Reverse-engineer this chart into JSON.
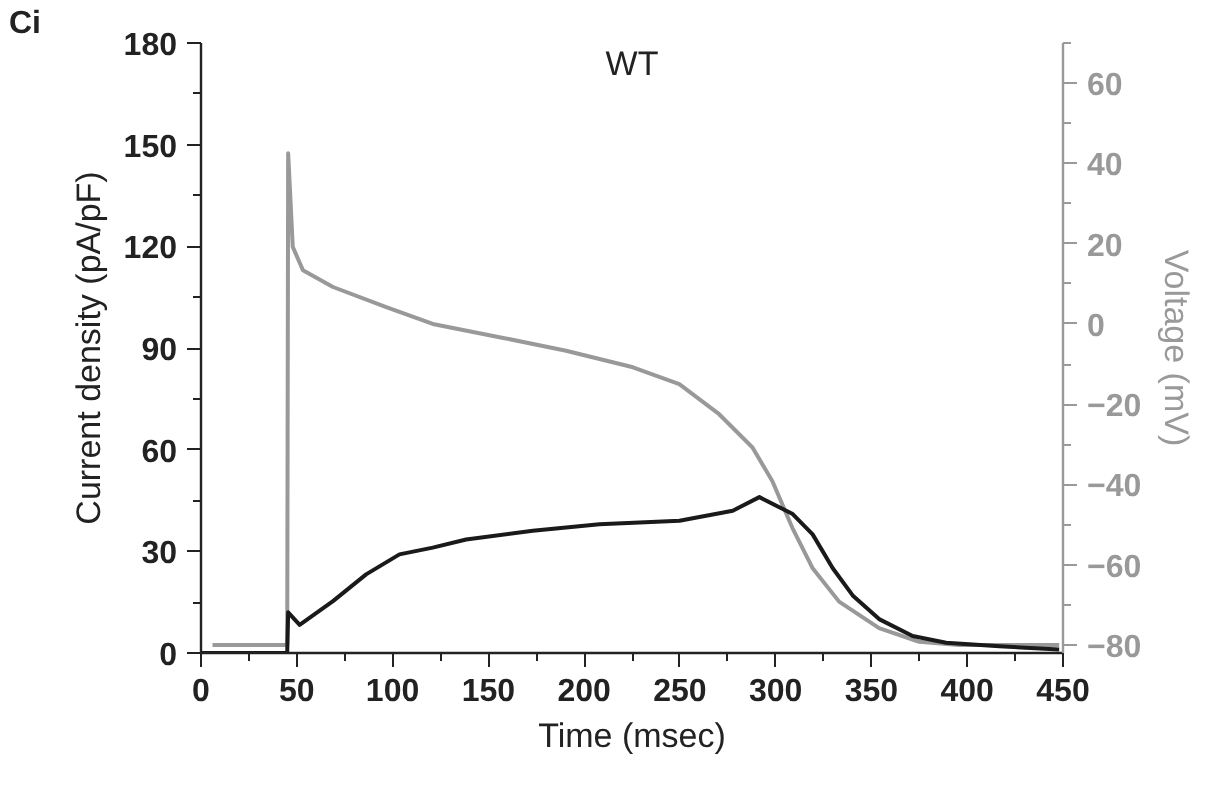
{
  "chart_data": {
    "type": "line",
    "title": "WT",
    "xlabel": "Time (msec)",
    "ylabel": "Current density (pA/pF)",
    "y2label": "Voltage (mV)",
    "annotations": [
      "Ci"
    ],
    "xlim": [
      0,
      450
    ],
    "xticks": [
      0,
      {
        "value": 25,
        "label": null
      },
      50,
      {
        "value": 75,
        "label": null
      },
      100,
      {
        "value": 125,
        "label": null
      },
      150,
      {
        "value": 175,
        "label": null
      },
      200,
      {
        "value": 225,
        "label": null
      },
      250,
      {
        "value": 275,
        "label": null
      },
      300,
      {
        "value": 325,
        "label": null
      },
      350,
      {
        "value": 375,
        "label": null
      },
      400,
      {
        "value": 425,
        "label": null
      },
      450
    ],
    "ylim": [
      0,
      180
    ],
    "yticks": [
      0,
      {
        "value": 15,
        "label": null
      },
      30,
      {
        "value": 45,
        "label": null
      },
      60,
      {
        "value": 75,
        "label": null
      },
      90,
      {
        "value": 105,
        "label": null
      },
      120,
      {
        "value": 135,
        "label": null
      },
      150,
      {
        "value": 165,
        "label": null
      },
      180
    ],
    "y2lim": [
      -82,
      70
    ],
    "y2ticks": [
      -80,
      {
        "value": -70,
        "label": null
      },
      -60,
      {
        "value": -50,
        "label": null
      },
      -40,
      {
        "value": -30,
        "label": null
      },
      -20,
      {
        "value": -10,
        "label": null
      },
      0,
      {
        "value": 10,
        "label": null
      },
      20,
      {
        "value": 30,
        "label": null
      },
      40,
      {
        "value": 50,
        "label": null
      },
      60,
      {
        "value": 70,
        "label": null
      }
    ],
    "grid": false,
    "series": [
      {
        "color": "#999999",
        "axis": "y2",
        "x": [
          6,
          45,
          45.5,
          47.9,
          53.2,
          68.9,
          96.7,
          121,
          155.8,
          190.6,
          225.5,
          249.7,
          270.5,
          287.9,
          298.3,
          308.7,
          319.2,
          333.1,
          354,
          374.9,
          395.8,
          448
        ],
        "values": [
          -80,
          -80,
          42.5,
          19.2,
          13.4,
          9.2,
          4.2,
          0,
          -3.3,
          -6.7,
          -10.8,
          -15,
          -22.5,
          -30.8,
          -39.2,
          -50.8,
          -60.8,
          -69.2,
          -75.8,
          -79.2,
          -80,
          -80
        ]
      },
      {
        "color": "#1a1a1a",
        "x": [
          0,
          45,
          45.5,
          51.5,
          68.9,
          86.2,
          103.6,
          121,
          138.4,
          173.2,
          208,
          249.8,
          277.6,
          291.5,
          308.9,
          319.3,
          329.8,
          340.2,
          354,
          371.5,
          389,
          416.8,
          448
        ],
        "values": [
          0,
          0,
          12,
          8.3,
          15.3,
          23.2,
          29.1,
          31.1,
          33.5,
          36.1,
          38,
          39,
          42,
          46,
          41,
          35,
          25,
          17,
          10,
          5,
          3,
          2,
          1
        ]
      }
    ]
  }
}
